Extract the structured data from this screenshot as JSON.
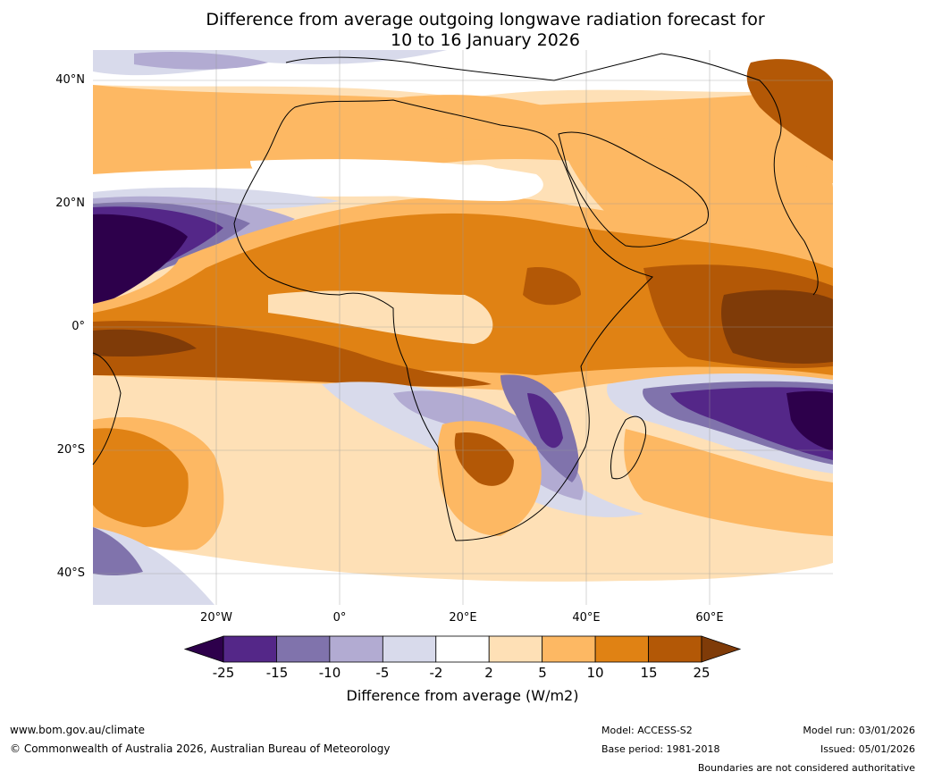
{
  "title": {
    "line1": "Difference from average outgoing longwave radiation forecast for",
    "line2": "10 to 16 January 2026"
  },
  "map": {
    "lat_labels": [
      "40°N",
      "20°N",
      "0°",
      "20°S",
      "40°S"
    ],
    "lon_labels": [
      "20°W",
      "0°",
      "20°E",
      "40°E",
      "60°E"
    ],
    "extent": {
      "lon_min": -40,
      "lon_max": 80,
      "lat_min": -45,
      "lat_max": 45
    },
    "grid": true
  },
  "colorbar": {
    "title": "Difference from average (W/m2)",
    "ticks": [
      "-25",
      "-15",
      "-10",
      "-5",
      "-2",
      "2",
      "5",
      "10",
      "15",
      "25"
    ],
    "colors": [
      "#2d004b",
      "#542788",
      "#8073ac",
      "#b2abd2",
      "#d8daeb",
      "#ffffff",
      "#fee0b6",
      "#fdb863",
      "#e08214",
      "#b35806",
      "#7f3b08"
    ],
    "extend": "both"
  },
  "footer": {
    "website": "www.bom.gov.au/climate",
    "copyright": "© Commonwealth of Australia 2026, Australian Bureau of Meteorology",
    "model": "Model: ACCESS-S2",
    "base_period": "Base period: 1981-2018",
    "model_run": "Model run: 03/01/2026",
    "issued": "Issued: 05/01/2026",
    "disclaimer": "Boundaries are not considered authoritative"
  }
}
